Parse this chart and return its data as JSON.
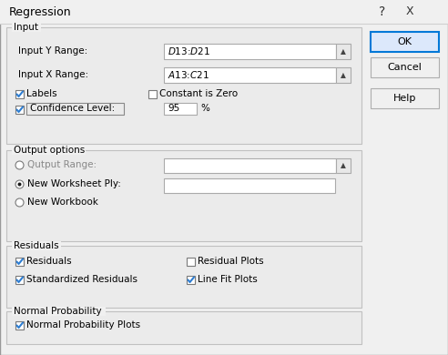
{
  "title": "Regression",
  "bg_color": "#f0f0f0",
  "white": "#ffffff",
  "input_y_label": "Input Y Range:",
  "input_x_label": "Input X Range:",
  "input_y_value": "$D$13:$D$21",
  "input_x_value": "$A$13:$C$21",
  "labels_text": "Labels",
  "constant_zero_text": "Constant is Zero",
  "confidence_text": "Confidence Level:",
  "confidence_value": "95",
  "percent_text": "%",
  "output_section_label": "Output options",
  "output_range_text": "Qutput Range:",
  "new_worksheet_text": "New Worksheet Ply:",
  "new_workbook_text": "New Workbook",
  "residuals_section_label": "Residuals",
  "residuals_text": "Residuals",
  "standardized_text": "Standardized Residuals",
  "residual_plots_text": "Residual Plots",
  "line_fit_text": "Line Fit Plots",
  "normal_prob_section_label": "Normal Probability",
  "normal_prob_text": "Normal Probability Plots",
  "ok_text": "OK",
  "cancel_text": "Cancel",
  "help_text": "Help",
  "question_mark": "?",
  "x_mark": "X",
  "section_input_label": "Input",
  "labels_checked": true,
  "confidence_checked": true,
  "constant_zero_checked": false,
  "output_range_selected": false,
  "new_worksheet_selected": true,
  "new_workbook_selected": false,
  "residuals_checked": true,
  "standardized_checked": true,
  "residual_plots_checked": false,
  "line_fit_checked": true,
  "normal_prob_checked": true
}
